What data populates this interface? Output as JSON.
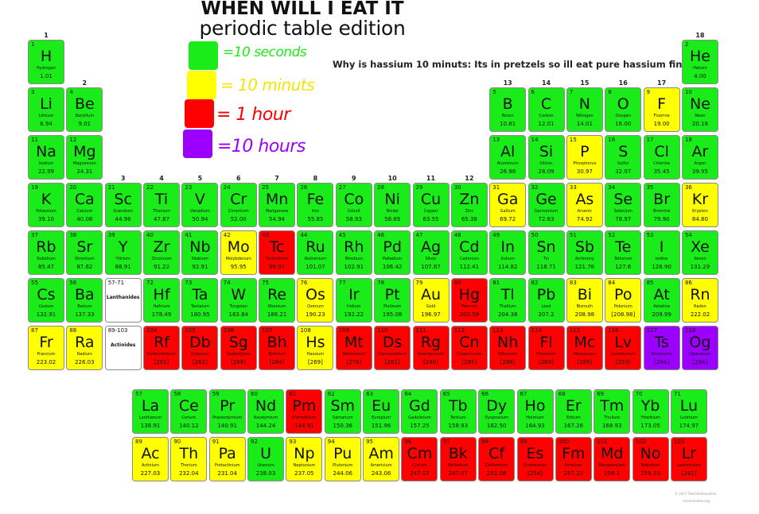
{
  "title": "WHEN WILL I EAT IT",
  "subtitle": "periodic table edition",
  "legend": [
    {
      "color": "#19ec19",
      "label": "=10 seconds"
    },
    {
      "color": "#ffff00",
      "label": "= 10 minuts"
    },
    {
      "color": "#ff0000",
      "label": "= 1 hour"
    },
    {
      "color": "#9b00ff",
      "label": "=10 hours"
    }
  ],
  "note": "Why is hassium 10 minuts: Its in pretzels so ill eat pure hassium fine",
  "colors": {
    "g": "#19ec19",
    "y": "#ffff00",
    "r": "#ff0000",
    "p": "#9b00ff",
    "w": "#ffffff"
  },
  "groups": [
    "1",
    "2",
    "3",
    "4",
    "5",
    "6",
    "7",
    "8",
    "9",
    "10",
    "11",
    "12",
    "13",
    "14",
    "15",
    "16",
    "17",
    "18"
  ],
  "placeholders": [
    {
      "range": "57-71",
      "label": "Lanthanides"
    },
    {
      "range": "89-103",
      "label": "Actinides"
    }
  ],
  "elements": [
    [
      1,
      "H",
      "Hydrogen",
      "1.01",
      "g"
    ],
    [
      2,
      "He",
      "Helium",
      "4.00",
      "g"
    ],
    [
      3,
      "Li",
      "Lithium",
      "6.94",
      "g"
    ],
    [
      4,
      "Be",
      "Beryllium",
      "9.01",
      "g"
    ],
    [
      5,
      "B",
      "Boron",
      "10.81",
      "g"
    ],
    [
      6,
      "C",
      "Carbon",
      "12.01",
      "g"
    ],
    [
      7,
      "N",
      "Nitrogen",
      "14.01",
      "g"
    ],
    [
      8,
      "O",
      "Oxygen",
      "16.00",
      "g"
    ],
    [
      9,
      "F",
      "Fluorine",
      "19.00",
      "y"
    ],
    [
      10,
      "Ne",
      "Neon",
      "20.18",
      "g"
    ],
    [
      11,
      "Na",
      "Sodium",
      "22.99",
      "g"
    ],
    [
      12,
      "Mg",
      "Magnesium",
      "24.31",
      "g"
    ],
    [
      13,
      "Al",
      "Aluminium",
      "26.98",
      "g"
    ],
    [
      14,
      "Si",
      "Silicon",
      "28.09",
      "g"
    ],
    [
      15,
      "P",
      "Phosphorus",
      "30.97",
      "y"
    ],
    [
      16,
      "S",
      "Sulfur",
      "32.07",
      "g"
    ],
    [
      17,
      "Cl",
      "Chlorine",
      "35.45",
      "g"
    ],
    [
      18,
      "Ar",
      "Argon",
      "39.95",
      "g"
    ],
    [
      19,
      "K",
      "Potassium",
      "39.10",
      "g"
    ],
    [
      20,
      "Ca",
      "Calcium",
      "40.08",
      "g"
    ],
    [
      21,
      "Sc",
      "Scandium",
      "44.96",
      "g"
    ],
    [
      22,
      "Ti",
      "Titanium",
      "47.87",
      "g"
    ],
    [
      23,
      "V",
      "Vanadium",
      "50.94",
      "g"
    ],
    [
      24,
      "Cr",
      "Chromium",
      "52.00",
      "g"
    ],
    [
      25,
      "Mn",
      "Manganese",
      "54.94",
      "g"
    ],
    [
      26,
      "Fe",
      "Iron",
      "55.85",
      "g"
    ],
    [
      27,
      "Co",
      "Cobalt",
      "58.93",
      "g"
    ],
    [
      28,
      "Ni",
      "Nickel",
      "58.69",
      "g"
    ],
    [
      29,
      "Cu",
      "Copper",
      "63.55",
      "g"
    ],
    [
      30,
      "Zn",
      "Zinc",
      "65.38",
      "g"
    ],
    [
      31,
      "Ga",
      "Gallium",
      "69.72",
      "y"
    ],
    [
      32,
      "Ge",
      "Germanium",
      "72.63",
      "g"
    ],
    [
      33,
      "As",
      "Arsenic",
      "74.92",
      "y"
    ],
    [
      34,
      "Se",
      "Selenium",
      "78.97",
      "g"
    ],
    [
      35,
      "Br",
      "Bromine",
      "79.90",
      "g"
    ],
    [
      36,
      "Kr",
      "Krypton",
      "84.80",
      "y"
    ],
    [
      37,
      "Rb",
      "Rubidium",
      "85.47",
      "g"
    ],
    [
      38,
      "Sr",
      "Strontium",
      "87.62",
      "g"
    ],
    [
      39,
      "Y",
      "Yttrium",
      "88.91",
      "g"
    ],
    [
      40,
      "Zr",
      "Zirconium",
      "91.22",
      "g"
    ],
    [
      41,
      "Nb",
      "Niobium",
      "92.91",
      "g"
    ],
    [
      42,
      "Mo",
      "Molybdenum",
      "95.95",
      "y"
    ],
    [
      43,
      "Tc",
      "Technetium",
      "98.91",
      "r"
    ],
    [
      44,
      "Ru",
      "Ruthenium",
      "101.07",
      "g"
    ],
    [
      45,
      "Rh",
      "Rhodium",
      "102.91",
      "g"
    ],
    [
      46,
      "Pd",
      "Palladium",
      "106.42",
      "g"
    ],
    [
      47,
      "Ag",
      "Silver",
      "107.87",
      "g"
    ],
    [
      48,
      "Cd",
      "Cadmium",
      "112.41",
      "g"
    ],
    [
      49,
      "In",
      "Indium",
      "114.82",
      "g"
    ],
    [
      50,
      "Sn",
      "Tin",
      "118.71",
      "g"
    ],
    [
      51,
      "Sb",
      "Antimony",
      "121.76",
      "g"
    ],
    [
      52,
      "Te",
      "Tellurium",
      "127.6",
      "g"
    ],
    [
      53,
      "I",
      "Iodine",
      "126.90",
      "g"
    ],
    [
      54,
      "Xe",
      "Xenon",
      "131.29",
      "g"
    ],
    [
      55,
      "Cs",
      "Cesium",
      "132.91",
      "g"
    ],
    [
      56,
      "Ba",
      "Barium",
      "137.33",
      "g"
    ],
    [
      72,
      "Hf",
      "Hafnium",
      "178.49",
      "g"
    ],
    [
      73,
      "Ta",
      "Tantalum",
      "180.95",
      "g"
    ],
    [
      74,
      "W",
      "Tungsten",
      "183.84",
      "g"
    ],
    [
      75,
      "Re",
      "Rhenium",
      "186.21",
      "g"
    ],
    [
      76,
      "Os",
      "Osmium",
      "190.23",
      "y"
    ],
    [
      77,
      "Ir",
      "Iridium",
      "192.22",
      "g"
    ],
    [
      78,
      "Pt",
      "Platinum",
      "195.08",
      "g"
    ],
    [
      79,
      "Au",
      "Gold",
      "196.97",
      "y"
    ],
    [
      80,
      "Hg",
      "Mercury",
      "200.59",
      "r"
    ],
    [
      81,
      "Tl",
      "Thallium",
      "204.38",
      "g"
    ],
    [
      82,
      "Pb",
      "Lead",
      "207.2",
      "g"
    ],
    [
      83,
      "Bi",
      "Bismuth",
      "208.98",
      "y"
    ],
    [
      84,
      "Po",
      "Polonium",
      "[208.98]",
      "y"
    ],
    [
      85,
      "At",
      "Astatine",
      "209.99",
      "g"
    ],
    [
      86,
      "Rn",
      "Radon",
      "222.02",
      "y"
    ],
    [
      87,
      "Fr",
      "Francium",
      "223.02",
      "y"
    ],
    [
      88,
      "Ra",
      "Radium",
      "226.03",
      "y"
    ],
    [
      104,
      "Rf",
      "Rutherfordium",
      "[261]",
      "r"
    ],
    [
      105,
      "Db",
      "Dubnium",
      "[262]",
      "r"
    ],
    [
      106,
      "Sg",
      "Seaborgium",
      "[266]",
      "r"
    ],
    [
      107,
      "Bh",
      "Bohrium",
      "[264]",
      "r"
    ],
    [
      108,
      "Hs",
      "Hassium",
      "[269]",
      "y"
    ],
    [
      109,
      "Mt",
      "Meitnerium",
      "[278]",
      "r"
    ],
    [
      110,
      "Ds",
      "Darmstadtium",
      "[281]",
      "r"
    ],
    [
      111,
      "Rg",
      "Roentgenium",
      "[280]",
      "r"
    ],
    [
      112,
      "Cn",
      "Copernicium",
      "[285]",
      "r"
    ],
    [
      113,
      "Nh",
      "Nihonium",
      "[286]",
      "r"
    ],
    [
      114,
      "Fl",
      "Flerovium",
      "[289]",
      "r"
    ],
    [
      115,
      "Mc",
      "Moscovium",
      "[289]",
      "r"
    ],
    [
      116,
      "Lv",
      "Livermorium",
      "[293]",
      "r"
    ],
    [
      117,
      "Ts",
      "Tennessine",
      "[294]",
      "p"
    ],
    [
      118,
      "Og",
      "Oganesson",
      "[294]",
      "p"
    ],
    [
      57,
      "La",
      "Lanthanum",
      "138.91",
      "g"
    ],
    [
      58,
      "Ce",
      "Cerium",
      "140.12",
      "g"
    ],
    [
      59,
      "Pr",
      "Praseodymium",
      "140.91",
      "g"
    ],
    [
      60,
      "Nd",
      "Neodymium",
      "144.24",
      "g"
    ],
    [
      61,
      "Pm",
      "Promethium",
      "144.91",
      "r"
    ],
    [
      62,
      "Sm",
      "Samarium",
      "150.36",
      "g"
    ],
    [
      63,
      "Eu",
      "Europium",
      "151.96",
      "g"
    ],
    [
      64,
      "Gd",
      "Gadolinium",
      "157.25",
      "g"
    ],
    [
      65,
      "Tb",
      "Terbium",
      "158.93",
      "g"
    ],
    [
      66,
      "Dy",
      "Dysprosium",
      "162.50",
      "g"
    ],
    [
      67,
      "Ho",
      "Holmium",
      "164.93",
      "g"
    ],
    [
      68,
      "Er",
      "Erbium",
      "167.26",
      "g"
    ],
    [
      69,
      "Tm",
      "Thulium",
      "168.93",
      "g"
    ],
    [
      70,
      "Yb",
      "Ytterbium",
      "173.05",
      "g"
    ],
    [
      71,
      "Lu",
      "Lutetium",
      "174.97",
      "g"
    ],
    [
      89,
      "Ac",
      "Actinium",
      "227.03",
      "y"
    ],
    [
      90,
      "Th",
      "Thorium",
      "232.04",
      "y"
    ],
    [
      91,
      "Pa",
      "Protactinium",
      "231.04",
      "y"
    ],
    [
      92,
      "U",
      "Uranium",
      "238.03",
      "g"
    ],
    [
      93,
      "Np",
      "Neptunium",
      "237.05",
      "y"
    ],
    [
      94,
      "Pu",
      "Plutonium",
      "244.06",
      "y"
    ],
    [
      95,
      "Am",
      "Americium",
      "243.06",
      "y"
    ],
    [
      96,
      "Cm",
      "Curium",
      "247.07",
      "r"
    ],
    [
      97,
      "Bk",
      "Berkelium",
      "247.07",
      "r"
    ],
    [
      98,
      "Cf",
      "Californium",
      "251.08",
      "r"
    ],
    [
      99,
      "Es",
      "Einsteinium",
      "[254]",
      "r"
    ],
    [
      100,
      "Fm",
      "Fermium",
      "257.10",
      "r"
    ],
    [
      101,
      "Md",
      "Mendelevium",
      "258.1",
      "r"
    ],
    [
      102,
      "No",
      "Nobelium",
      "259.10",
      "r"
    ],
    [
      103,
      "Lr",
      "Lawrencium",
      "[262]",
      "r"
    ]
  ],
  "credit": [
    "© 2017 Todd Helmenstine",
    "sciencenotes.org"
  ]
}
